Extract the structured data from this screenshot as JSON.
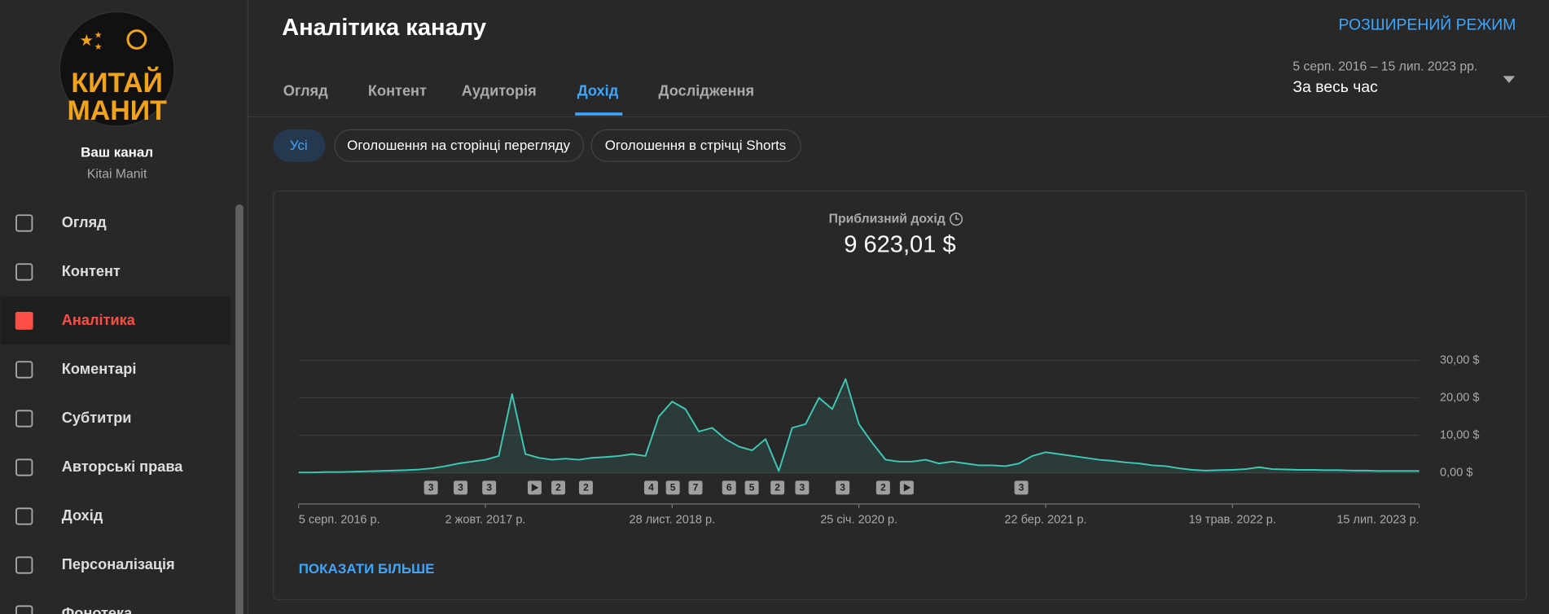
{
  "sidebar": {
    "logo_top": "КИТАЙ",
    "logo_bottom": "МАНИТ",
    "channel_label": "Ваш канал",
    "channel_name": "Kitai Manit",
    "nav": [
      "Огляд",
      "Контент",
      "Аналітика",
      "Коментарі",
      "Субтитри",
      "Авторські права",
      "Дохід",
      "Персоналізація",
      "Фонотека"
    ]
  },
  "header": {
    "title": "Аналітика каналу",
    "advanced": "РОЗШИРЕНИЙ РЕЖИМ",
    "tabs": [
      "Огляд",
      "Контент",
      "Аудиторія",
      "Дохід",
      "Дослідження"
    ],
    "date_range": "5 серп. 2016 – 15 лип. 2023 рр.",
    "period": "За весь час"
  },
  "chips": [
    "Усі",
    "Оголошення на сторінці перегляду",
    "Оголошення в стрічці Shorts"
  ],
  "chart_data": {
    "type": "line",
    "title": "Приблизний дохід",
    "total": "9 623,01 $",
    "color": "#3fc9b5",
    "grid": true,
    "values": [
      0.1,
      0.1,
      0.2,
      0.2,
      0.3,
      0.4,
      0.5,
      0.6,
      0.7,
      0.9,
      1.2,
      1.8,
      2.5,
      3.0,
      3.5,
      4.5,
      21.0,
      5.0,
      4.0,
      3.5,
      3.8,
      3.5,
      4.0,
      4.2,
      4.5,
      5.0,
      4.5,
      15,
      19,
      17,
      11,
      12,
      9,
      7,
      6,
      9,
      0.5,
      12,
      13,
      20,
      17,
      25,
      13,
      8,
      3.5,
      3,
      3,
      3.5,
      2.5,
      3,
      2.5,
      2,
      2,
      1.8,
      2.5,
      4.5,
      5.5,
      5,
      4.5,
      4,
      3.5,
      3.2,
      2.8,
      2.5,
      2,
      1.8,
      1.2,
      0.8,
      0.6,
      0.7,
      0.8,
      1,
      1.5,
      1.0,
      0.9,
      0.8,
      0.8,
      0.7,
      0.7,
      0.6,
      0.6,
      0.5,
      0.5,
      0.5,
      0.5
    ],
    "ylim": [
      0,
      30
    ],
    "yticks": [
      {
        "value": 0,
        "label": "0,00 $"
      },
      {
        "value": 10,
        "label": "10,00 $"
      },
      {
        "value": 20,
        "label": "20,00 $"
      },
      {
        "value": 30,
        "label": "30,00 $"
      }
    ],
    "xlabels": [
      "5 серп. 2016 р.",
      "2 жовт. 2017 р.",
      "28 лист. 2018 р.",
      "25 січ. 2020 р.",
      "22 бер. 2021 р.",
      "19 трав. 2022 р.",
      "15 лип. 2023 р."
    ],
    "markers": [
      "3",
      "3",
      "3",
      null,
      "2",
      "2",
      "4",
      "5",
      "7",
      "6",
      "5",
      "2",
      "3",
      "3",
      "2",
      null,
      "3"
    ],
    "show_more": "ПОКАЗАТИ БІЛЬШЕ"
  }
}
